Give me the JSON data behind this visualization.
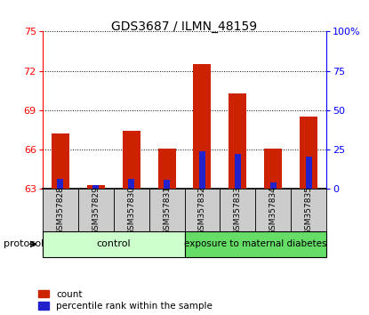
{
  "title": "GDS3687 / ILMN_48159",
  "samples": [
    "GSM357828",
    "GSM357829",
    "GSM357830",
    "GSM357831",
    "GSM357832",
    "GSM357833",
    "GSM357834",
    "GSM357835"
  ],
  "red_values": [
    67.2,
    63.3,
    67.4,
    66.1,
    72.5,
    70.3,
    66.1,
    68.5
  ],
  "blue_values": [
    63.8,
    63.3,
    63.8,
    63.7,
    65.9,
    65.7,
    63.5,
    65.5
  ],
  "y_min": 63,
  "y_max": 75,
  "y_ticks": [
    63,
    66,
    69,
    72,
    75
  ],
  "y2_ticks": [
    0,
    25,
    50,
    75,
    100
  ],
  "bar_color_red": "#cc2200",
  "bar_color_blue": "#2222cc",
  "n_control": 4,
  "n_treat": 4,
  "control_label": "control",
  "treatment_label": "exposure to maternal diabetes",
  "protocol_label": "protocol",
  "legend_red": "count",
  "legend_blue": "percentile rank within the sample",
  "control_bg": "#ccffcc",
  "treatment_bg": "#66dd66",
  "xticklabel_bg": "#cccccc",
  "red_bar_width": 0.5,
  "blue_bar_width": 0.18
}
